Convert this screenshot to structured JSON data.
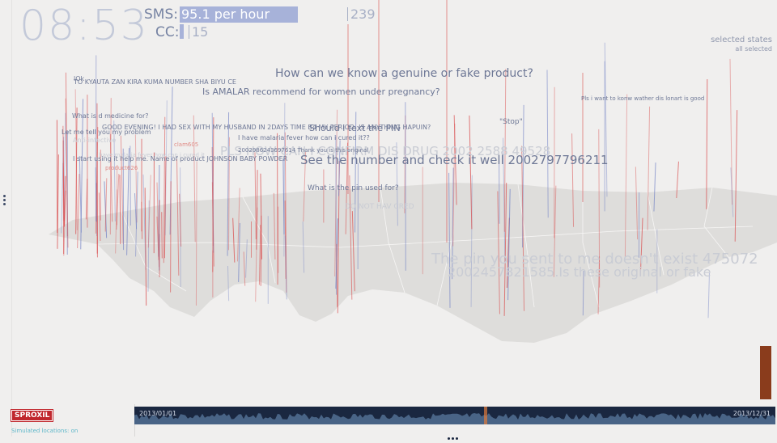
{
  "clock": "08:53",
  "rates": {
    "sms_label": "SMS:",
    "sms_value": "95.1 per hour",
    "sms_max": "239",
    "cc_label": "CC:",
    "cc_max": "15"
  },
  "states": {
    "title": "selected states",
    "value": "all selected"
  },
  "messages": [
    {
      "text": "How can we know a genuine or fake product?",
      "size": 14,
      "tone": "dark"
    },
    {
      "text": "TO KYAUTA ZAN KIRA KUMA NUMBER SHA BIYU CE",
      "size": 8,
      "tone": "dark"
    },
    {
      "text": "Is AMALAR recommend for women under pregnancy?",
      "size": 11,
      "tone": "dark"
    },
    {
      "text": "Pls i want to konw wather dis lonart is good",
      "size": 7,
      "tone": "dark"
    },
    {
      "text": "What is d medicine for?",
      "size": 8,
      "tone": "dark"
    },
    {
      "text": "\"Stop\"",
      "size": 9,
      "tone": "dark"
    },
    {
      "text": "GOOD EVENING! I HAD SEX WITH MY HUSBAND IN 2DAYS TIME B4 MY PERIOD. IS ANYTHING HAPUIN?",
      "size": 8,
      "tone": "dark"
    },
    {
      "text": "Should i text the PIN",
      "size": 11,
      "tone": "dark"
    },
    {
      "text": "Let me tell you my problem",
      "size": 8,
      "tone": "dark"
    },
    {
      "text": "Anti-infective",
      "size": 8,
      "tone": "ghost"
    },
    {
      "text": "I have malaria fever how can i cured it??",
      "size": 8,
      "tone": "dark"
    },
    {
      "text": "clam605",
      "size": 7,
      "tone": "red"
    },
    {
      "text": "PLS HOW CAN I CONFIRM DIS DRUG 2002 2588 49528",
      "size": 15,
      "tone": "ghost"
    },
    {
      "text": "2002986243697614 Thank you is this original",
      "size": 7,
      "tone": "dark"
    },
    {
      "text": "i have malaria fever how can i cured it",
      "size": 7,
      "tone": "ghost"
    },
    {
      "text": "I start using it help me. Name of product JOHNSON BABY POWDER",
      "size": 8,
      "tone": "dark"
    },
    {
      "text": "See the number and check it well 2002797796211",
      "size": 15,
      "tone": "dark"
    },
    {
      "text": "product626",
      "size": 7,
      "tone": "red"
    },
    {
      "text": "What is the pin used for?",
      "size": 9,
      "tone": "dark"
    },
    {
      "text": "DO NOT HAV CRED",
      "size": 9,
      "tone": "ghost"
    },
    {
      "text": "The pin you sent to me doesn't exist 475072",
      "size": 18,
      "tone": "ghost"
    },
    {
      "text": "2002457821585.Is these original or fake",
      "size": 16,
      "tone": "ghost"
    },
    {
      "text": "lOk",
      "size": 8,
      "tone": "dark"
    }
  ],
  "sidebar": {
    "logo": "SPROXIL",
    "simulated_note": "Simulated locations: on"
  },
  "timeline": {
    "start": "2013/01/01",
    "end": "2013/12/31",
    "position": 0.545
  },
  "colors": {
    "red": "#d9494a",
    "blue": "#6f7fc4",
    "map": "#dedddb",
    "timeline_bg": "#1a2740",
    "volume": "#8a3c1c"
  }
}
